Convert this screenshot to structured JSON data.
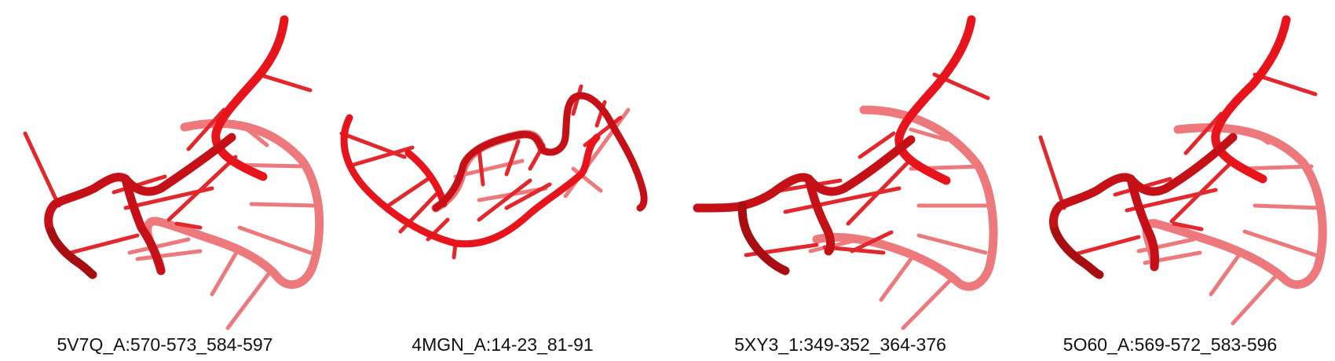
{
  "colors": {
    "backbone": "#e8141c",
    "backbone_shadow": "#a80d12",
    "backbone_faded": "#e8585c",
    "base": "#e3282d",
    "base_faded": "#ec7a7c",
    "caption": "#111111"
  },
  "panels": [
    {
      "label": "5V7Q_A:570-573_584-597"
    },
    {
      "label": "4MGN_A:14-23_81-91"
    },
    {
      "label": "5XY3_1:349-352_364-376"
    },
    {
      "label": "5O60_A:569-572_583-596"
    }
  ]
}
